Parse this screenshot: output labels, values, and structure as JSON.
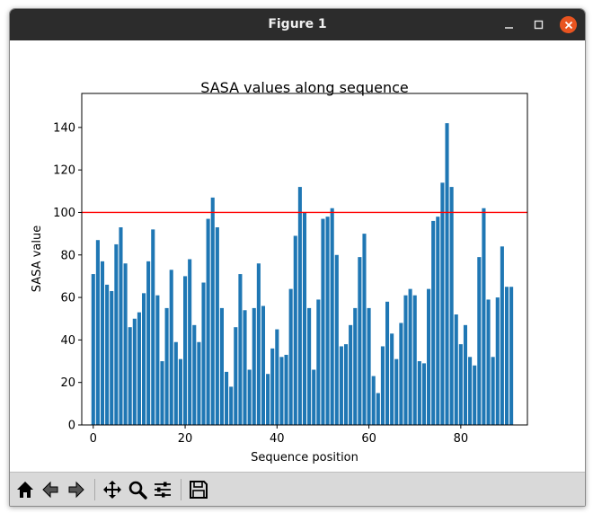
{
  "window": {
    "title": "Figure 1"
  },
  "toolbar": {
    "buttons": [
      {
        "name": "home-button",
        "icon": "home-icon"
      },
      {
        "name": "back-button",
        "icon": "back-arrow-icon"
      },
      {
        "name": "forward-button",
        "icon": "forward-arrow-icon"
      },
      {
        "name": "pan-button",
        "icon": "move-icon"
      },
      {
        "name": "zoom-button",
        "icon": "zoom-icon"
      },
      {
        "name": "configure-subplots-button",
        "icon": "sliders-icon"
      },
      {
        "name": "save-button",
        "icon": "save-icon"
      }
    ]
  },
  "colors": {
    "bar": "#1f77b4",
    "threshold_line": "#ff0000",
    "titlebar": "#2c2c2c",
    "close_button": "#e95420",
    "toolbar": "#d9d9d9"
  },
  "chart_data": {
    "type": "bar",
    "title": "SASA values along sequence",
    "xlabel": "Sequence position",
    "ylabel": "SASA value",
    "xlim": [
      -2.5,
      94.5
    ],
    "ylim": [
      0,
      156
    ],
    "xticks": [
      0,
      20,
      40,
      60,
      80
    ],
    "yticks": [
      0,
      20,
      40,
      60,
      80,
      100,
      120,
      140
    ],
    "grid": false,
    "threshold": 100,
    "x": [
      0,
      1,
      2,
      3,
      4,
      5,
      6,
      7,
      8,
      9,
      10,
      11,
      12,
      13,
      14,
      15,
      16,
      17,
      18,
      19,
      20,
      21,
      22,
      23,
      24,
      25,
      26,
      27,
      28,
      29,
      30,
      31,
      32,
      33,
      34,
      35,
      36,
      37,
      38,
      39,
      40,
      41,
      42,
      43,
      44,
      45,
      46,
      47,
      48,
      49,
      50,
      51,
      52,
      53,
      54,
      55,
      56,
      57,
      58,
      59,
      60,
      61,
      62,
      63,
      64,
      65,
      66,
      67,
      68,
      69,
      70,
      71,
      72,
      73,
      74,
      75,
      76,
      77,
      78,
      79,
      80,
      81,
      82,
      83,
      84,
      85,
      86,
      87,
      88,
      89,
      90,
      91
    ],
    "values": [
      71,
      87,
      77,
      66,
      63,
      85,
      93,
      76,
      46,
      50,
      53,
      62,
      77,
      92,
      61,
      30,
      55,
      73,
      39,
      31,
      70,
      78,
      47,
      39,
      67,
      97,
      107,
      93,
      55,
      25,
      18,
      46,
      71,
      54,
      26,
      55,
      76,
      56,
      24,
      36,
      45,
      32,
      33,
      64,
      89,
      112,
      100,
      55,
      26,
      59,
      97,
      98,
      102,
      80,
      37,
      38,
      47,
      55,
      79,
      90,
      55,
      23,
      15,
      37,
      58,
      43,
      31,
      48,
      61,
      64,
      61,
      30,
      29,
      64,
      96,
      98,
      114,
      142,
      112,
      52,
      38,
      47,
      32,
      28,
      79,
      102,
      59,
      32,
      60,
      84,
      65,
      65
    ]
  }
}
